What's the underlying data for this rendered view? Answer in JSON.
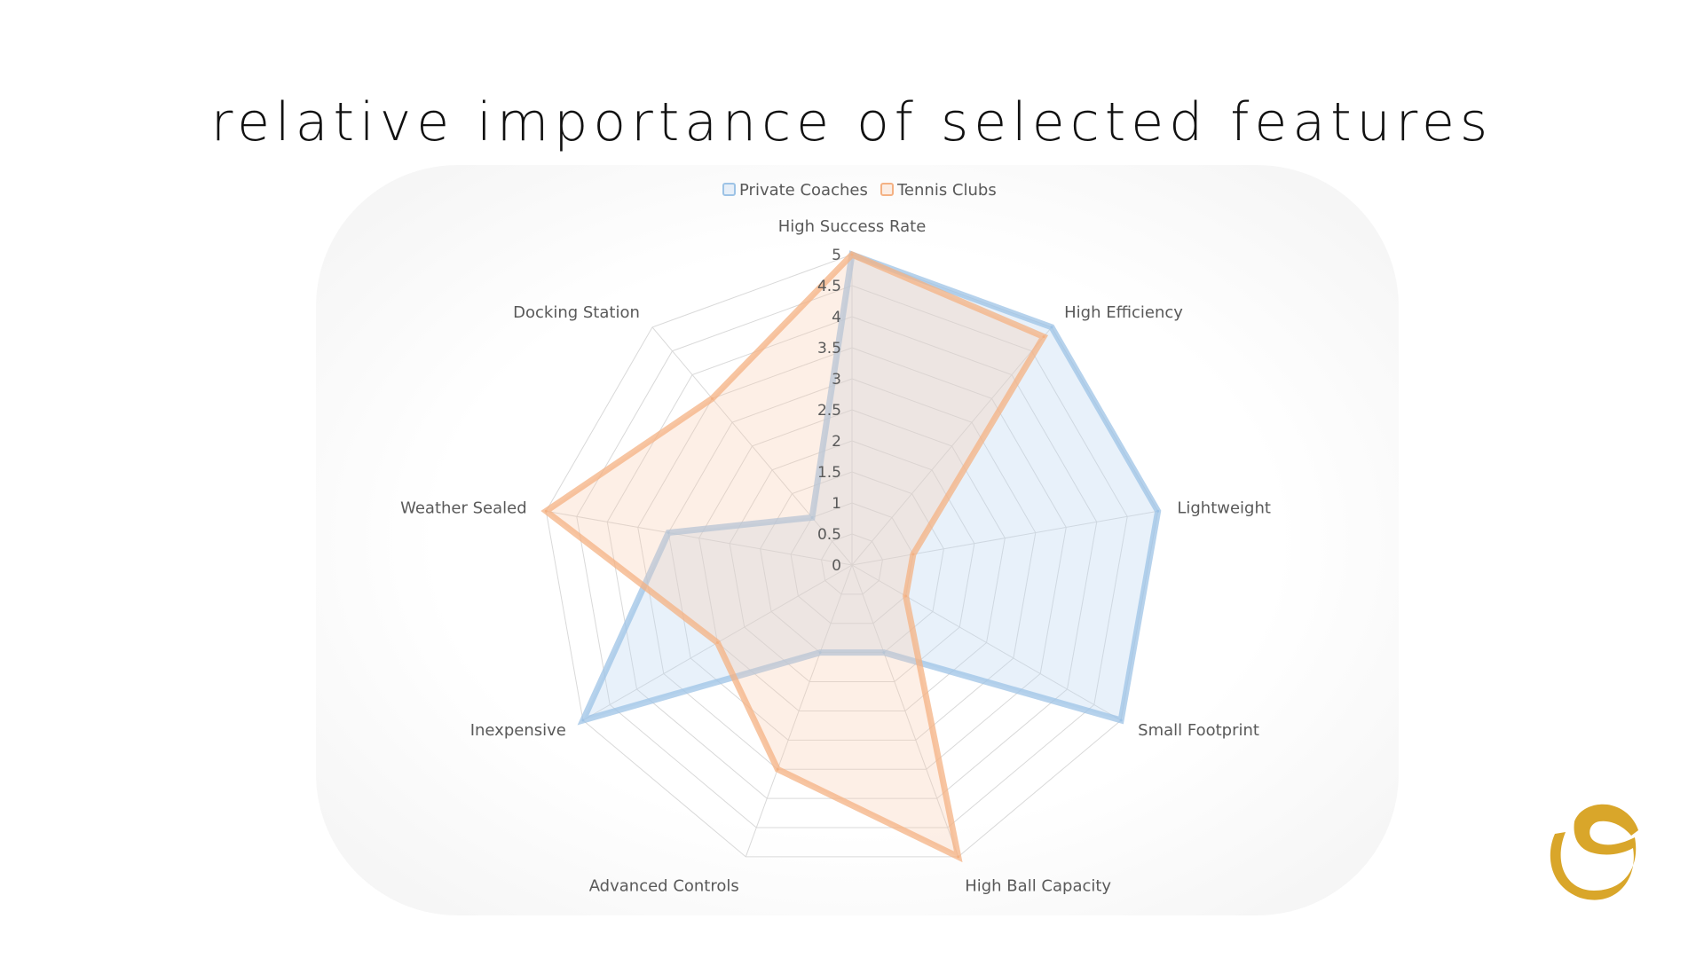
{
  "title": "relative importance of selected features",
  "chart_data": {
    "type": "radar",
    "title": "relative importance of selected features",
    "categories": [
      "High Success Rate",
      "High Efficiency",
      "Lightweight",
      "Small Footprint",
      "High Ball Capacity",
      "Advanced Controls",
      "Inexpensive",
      "Weather Sealed",
      "Docking Station"
    ],
    "series": [
      {
        "name": "Private Coaches",
        "color": "#9dc3e6",
        "fill": "rgba(190, 214, 240, 0.35)",
        "values": [
          5,
          5,
          5,
          5,
          1.5,
          1.5,
          5,
          3,
          1
        ]
      },
      {
        "name": "Tennis Clubs",
        "color": "#f4b183",
        "fill": "rgba(248, 203, 173, 0.30)",
        "values": [
          5,
          4.8,
          1,
          1,
          5,
          3.5,
          2.5,
          5,
          3.5
        ]
      }
    ],
    "rmin": 0,
    "rmax": 5,
    "ticks": [
      "0",
      "0.5",
      "1",
      "1.5",
      "2",
      "2.5",
      "3",
      "3.5",
      "4",
      "4.5",
      "5"
    ],
    "grid": true,
    "legend_position": "top"
  },
  "logo": {
    "name": "brand-logo",
    "color": "#d9a62a"
  }
}
